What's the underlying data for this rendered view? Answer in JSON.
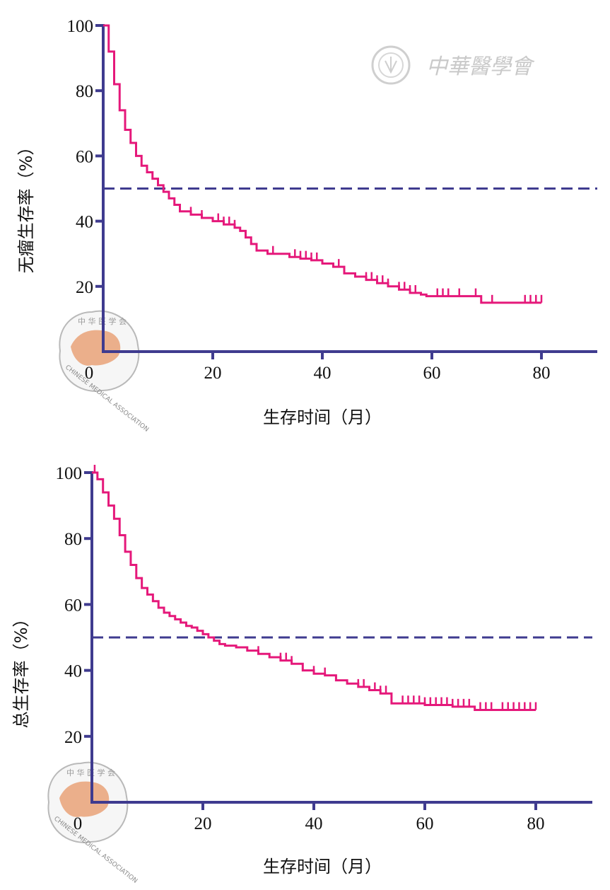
{
  "colors": {
    "axis": "#3f3b8f",
    "curve": "#e5187a",
    "median": "#3f3b8f",
    "logo_map": "#eaa77f"
  },
  "watermark": {
    "text": "中華醫學會"
  },
  "logo": {
    "text": "CHINESE MEDICAL ASSOCIATION"
  },
  "chart_data": [
    {
      "type": "line",
      "title": "",
      "xlabel": "生存时间（月）",
      "ylabel": "无瘤生存率（%）",
      "xlim": [
        0,
        90
      ],
      "ylim": [
        0,
        100
      ],
      "x_ticks": [
        0,
        20,
        40,
        60,
        80
      ],
      "x_tick_labels": [
        "0",
        "20",
        "40",
        "60",
        "80"
      ],
      "y_ticks": [
        20,
        40,
        60,
        80,
        100
      ],
      "y_tick_labels": [
        "20",
        "40",
        "60",
        "80",
        "100"
      ],
      "reference_line": {
        "y": 50,
        "style": "dashed"
      },
      "series": [
        {
          "name": "无瘤生存",
          "x": [
            0,
            1,
            2,
            3,
            4,
            5,
            6,
            7,
            8,
            9,
            10,
            11,
            12,
            13,
            14,
            16,
            18,
            20,
            22,
            24,
            25,
            26,
            27,
            28,
            30,
            32,
            34,
            36,
            38,
            40,
            42,
            44,
            46,
            48,
            50,
            52,
            54,
            56,
            58,
            59,
            62,
            66,
            69,
            72,
            80
          ],
          "y": [
            100,
            92,
            82,
            74,
            68,
            64,
            60,
            57,
            55,
            53,
            51,
            49,
            47,
            45,
            43,
            42,
            41,
            40,
            39,
            38,
            37,
            35,
            33,
            31,
            30,
            30,
            29,
            28.5,
            28,
            27,
            26,
            24,
            23,
            22,
            21,
            20,
            19,
            18,
            17.5,
            17,
            17,
            17,
            15,
            15,
            15
          ],
          "censor_x": [
            16,
            18,
            21,
            22,
            23,
            24,
            31,
            35,
            36,
            37,
            38,
            39,
            43,
            48,
            49,
            50,
            51,
            52,
            54,
            55,
            56,
            57,
            61,
            62,
            63,
            65,
            68,
            71,
            77,
            78,
            79,
            80
          ]
        }
      ]
    },
    {
      "type": "line",
      "title": "",
      "xlabel": "生存时间（月）",
      "ylabel": "总生存率（%）",
      "xlim": [
        0,
        90
      ],
      "ylim": [
        0,
        100
      ],
      "x_ticks": [
        0,
        20,
        40,
        60,
        80
      ],
      "x_tick_labels": [
        "0",
        "20",
        "40",
        "60",
        "80"
      ],
      "y_ticks": [
        20,
        40,
        60,
        80,
        100
      ],
      "y_tick_labels": [
        "20",
        "40",
        "60",
        "80",
        "100"
      ],
      "reference_line": {
        "y": 50,
        "style": "dashed"
      },
      "series": [
        {
          "name": "总生存",
          "x": [
            0,
            1,
            2,
            3,
            4,
            5,
            6,
            7,
            8,
            9,
            10,
            11,
            12,
            13,
            14,
            15,
            16,
            17,
            18,
            19,
            20,
            21,
            22,
            23,
            24,
            26,
            28,
            30,
            32,
            34,
            36,
            38,
            40,
            42,
            44,
            46,
            48,
            50,
            52,
            54,
            55,
            60,
            65,
            69,
            72,
            80
          ],
          "y": [
            100,
            98,
            94,
            90,
            86,
            81,
            76,
            72,
            68,
            65,
            63,
            61,
            59,
            57.5,
            56.5,
            55.5,
            54.5,
            53.5,
            53,
            52,
            51,
            50,
            49,
            48,
            47.5,
            47,
            46,
            45,
            44,
            43,
            42,
            40,
            39,
            38.5,
            37,
            36,
            35,
            34,
            33,
            30,
            30,
            29.5,
            29,
            28,
            28,
            28
          ],
          "censor_x": [
            0.5,
            30,
            34,
            35,
            36,
            40,
            42,
            48,
            49,
            51,
            52,
            53,
            56,
            57,
            58,
            59,
            60,
            61,
            62,
            63,
            64,
            65,
            66,
            67,
            68,
            70,
            71,
            72,
            74,
            75,
            76,
            77,
            78,
            79,
            80
          ]
        }
      ]
    }
  ]
}
